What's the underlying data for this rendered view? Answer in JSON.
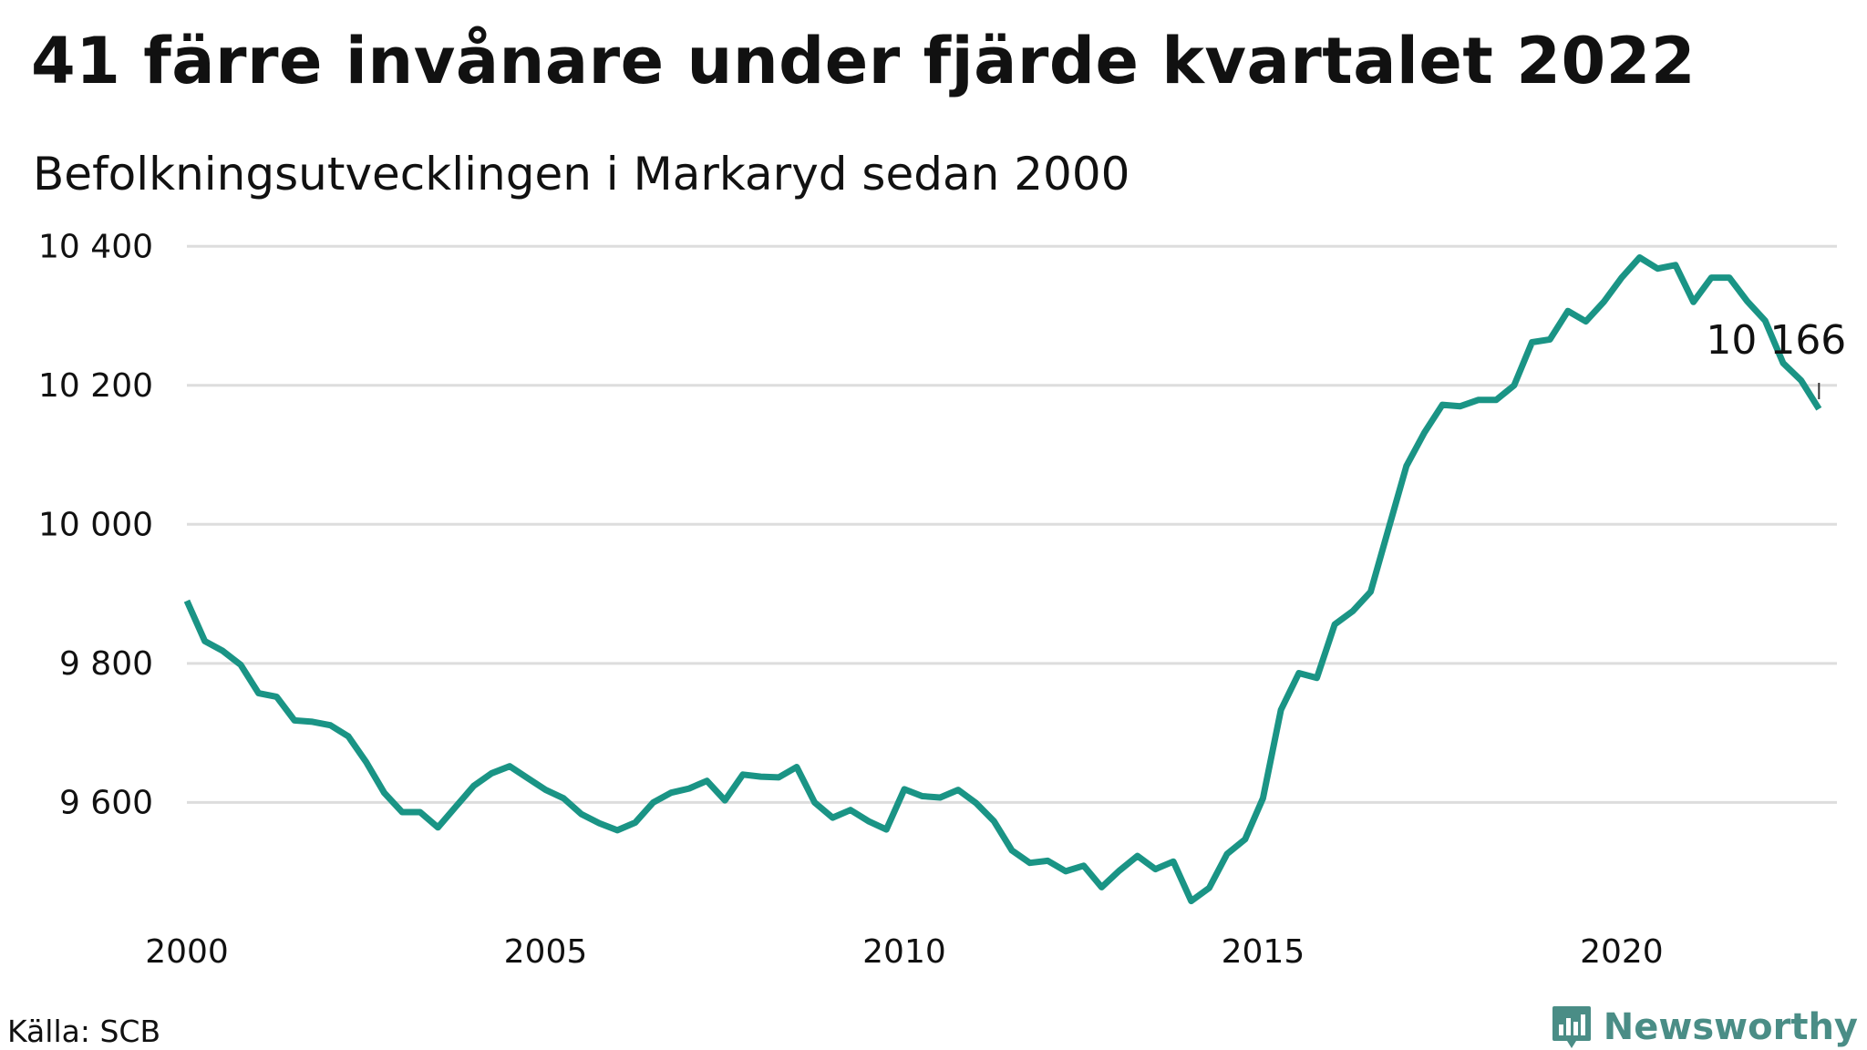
{
  "title": "41 färre invånare under fjärde kvartalet 2022",
  "subtitle": "Befolkningsutvecklingen i Markaryd sedan 2000",
  "source": "Källa: SCB",
  "brand": {
    "name": "Newsworthy",
    "color": "#4a8d86",
    "icon": "newsworthy-logo-icon"
  },
  "colors": {
    "line": "#1a9485",
    "grid": "#dddddd"
  },
  "chart_data": {
    "type": "line",
    "title": "41 färre invånare under fjärde kvartalet 2022",
    "subtitle": "Befolkningsutvecklingen i Markaryd sedan 2000",
    "xlabel": "",
    "ylabel": "",
    "x_ticks": [
      2000,
      2005,
      2010,
      2015,
      2020
    ],
    "x_tick_labels": [
      "2000",
      "2005",
      "2010",
      "2015",
      "2020"
    ],
    "y_ticks": [
      9600,
      9800,
      10000,
      10200,
      10400
    ],
    "y_tick_labels": [
      "9 600",
      "9 800",
      "10 000",
      "10 200",
      "10 400"
    ],
    "xlim": [
      2000,
      2023
    ],
    "ylim": [
      9430,
      10420
    ],
    "grid": "horizontal",
    "end_label": "10 166",
    "series": [
      {
        "values": [
          [
            2000.0,
            9890
          ],
          [
            2000.25,
            9832
          ],
          [
            2000.5,
            9818
          ],
          [
            2000.75,
            9798
          ],
          [
            2001.0,
            9757
          ],
          [
            2001.25,
            9752
          ],
          [
            2001.5,
            9718
          ],
          [
            2001.75,
            9716
          ],
          [
            2002.0,
            9711
          ],
          [
            2002.25,
            9695
          ],
          [
            2002.5,
            9658
          ],
          [
            2002.75,
            9614
          ],
          [
            2003.0,
            9586
          ],
          [
            2003.25,
            9586
          ],
          [
            2003.5,
            9564
          ],
          [
            2003.75,
            9594
          ],
          [
            2004.0,
            9624
          ],
          [
            2004.25,
            9642
          ],
          [
            2004.5,
            9652
          ],
          [
            2004.75,
            9635
          ],
          [
            2005.0,
            9618
          ],
          [
            2005.25,
            9606
          ],
          [
            2005.5,
            9583
          ],
          [
            2005.75,
            9570
          ],
          [
            2006.0,
            9560
          ],
          [
            2006.25,
            9571
          ],
          [
            2006.5,
            9600
          ],
          [
            2006.75,
            9614
          ],
          [
            2007.0,
            9620
          ],
          [
            2007.25,
            9631
          ],
          [
            2007.5,
            9603
          ],
          [
            2007.75,
            9640
          ],
          [
            2008.0,
            9637
          ],
          [
            2008.25,
            9636
          ],
          [
            2008.5,
            9651
          ],
          [
            2008.75,
            9600
          ],
          [
            2009.0,
            9578
          ],
          [
            2009.25,
            9589
          ],
          [
            2009.5,
            9573
          ],
          [
            2009.75,
            9561
          ],
          [
            2010.0,
            9619
          ],
          [
            2010.25,
            9609
          ],
          [
            2010.5,
            9607
          ],
          [
            2010.75,
            9618
          ],
          [
            2011.0,
            9599
          ],
          [
            2011.25,
            9573
          ],
          [
            2011.5,
            9531
          ],
          [
            2011.75,
            9513
          ],
          [
            2012.0,
            9516
          ],
          [
            2012.25,
            9501
          ],
          [
            2012.5,
            9509
          ],
          [
            2012.75,
            9478
          ],
          [
            2013.0,
            9502
          ],
          [
            2013.25,
            9523
          ],
          [
            2013.5,
            9504
          ],
          [
            2013.75,
            9515
          ],
          [
            2014.0,
            9458
          ],
          [
            2014.25,
            9477
          ],
          [
            2014.5,
            9526
          ],
          [
            2014.75,
            9547
          ],
          [
            2015.0,
            9606
          ],
          [
            2015.25,
            9733
          ],
          [
            2015.5,
            9786
          ],
          [
            2015.75,
            9779
          ],
          [
            2016.0,
            9856
          ],
          [
            2016.25,
            9875
          ],
          [
            2016.5,
            9903
          ],
          [
            2016.75,
            9994
          ],
          [
            2017.0,
            10084
          ],
          [
            2017.25,
            10132
          ],
          [
            2017.5,
            10172
          ],
          [
            2017.75,
            10170
          ],
          [
            2018.0,
            10179
          ],
          [
            2018.25,
            10179
          ],
          [
            2018.5,
            10200
          ],
          [
            2018.75,
            10262
          ],
          [
            2019.0,
            10266
          ],
          [
            2019.25,
            10307
          ],
          [
            2019.5,
            10292
          ],
          [
            2019.75,
            10320
          ],
          [
            2020.0,
            10355
          ],
          [
            2020.25,
            10384
          ],
          [
            2020.5,
            10368
          ],
          [
            2020.75,
            10373
          ],
          [
            2021.0,
            10320
          ],
          [
            2021.25,
            10355
          ],
          [
            2021.5,
            10355
          ],
          [
            2021.75,
            10321
          ],
          [
            2022.0,
            10293
          ],
          [
            2022.25,
            10232
          ],
          [
            2022.5,
            10207
          ],
          [
            2022.75,
            10166
          ]
        ]
      }
    ]
  }
}
